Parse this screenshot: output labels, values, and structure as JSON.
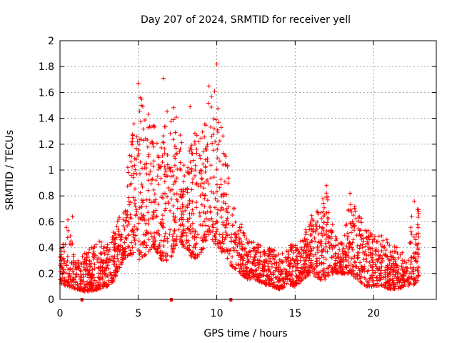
{
  "chart_data": {
    "type": "scatter",
    "title": "Day 207 of 2024, SRMTID for receiver yell",
    "xlabel": "GPS time / hours",
    "ylabel": "SRMTID / TECUs",
    "xlim": [
      0,
      24
    ],
    "ylim": [
      0,
      2
    ],
    "x_ticks": [
      0,
      5,
      10,
      15,
      20
    ],
    "x_tick_labels": [
      "0",
      "5",
      "10",
      "15",
      "20"
    ],
    "y_ticks": [
      0,
      0.2,
      0.4,
      0.6,
      0.8,
      1,
      1.2,
      1.4,
      1.6,
      1.8,
      2
    ],
    "y_tick_labels": [
      "0",
      "0.2",
      "0.4",
      "0.6",
      "0.8",
      "1",
      "1.2",
      "1.4",
      "1.6",
      "1.8",
      "2"
    ],
    "grid": true,
    "series_color": "#ff0000",
    "marker": "plus",
    "data_gap_markers_x": [
      1.4,
      7.1,
      10.9
    ],
    "envelope": {
      "description": "approximate upper/lower bounds of point cloud by hour",
      "hours": [
        0,
        0.5,
        1,
        1.5,
        2,
        2.5,
        3,
        3.5,
        4,
        4.5,
        5,
        5.5,
        6,
        6.5,
        7,
        7.5,
        8,
        8.5,
        9,
        9.5,
        10,
        10.5,
        11,
        11.5,
        12,
        12.5,
        13,
        13.5,
        14,
        14.5,
        15,
        15.5,
        16,
        16.5,
        17,
        17.5,
        18,
        18.5,
        19,
        19.5,
        20,
        20.5,
        21,
        21.5,
        22,
        22.5,
        22.9
      ],
      "low": [
        0.12,
        0.1,
        0.08,
        0.06,
        0.06,
        0.08,
        0.1,
        0.15,
        0.3,
        0.35,
        0.3,
        0.35,
        0.4,
        0.3,
        0.3,
        0.45,
        0.4,
        0.3,
        0.35,
        0.5,
        0.4,
        0.35,
        0.25,
        0.2,
        0.15,
        0.15,
        0.12,
        0.1,
        0.08,
        0.1,
        0.1,
        0.15,
        0.2,
        0.15,
        0.15,
        0.2,
        0.2,
        0.2,
        0.15,
        0.1,
        0.1,
        0.1,
        0.08,
        0.08,
        0.1,
        0.1,
        0.15
      ],
      "high": [
        0.4,
        0.65,
        0.3,
        0.35,
        0.4,
        0.45,
        0.45,
        0.55,
        0.7,
        1.2,
        1.6,
        1.5,
        1.35,
        1.2,
        1.6,
        1.45,
        1.0,
        1.3,
        1.25,
        1.55,
        1.7,
        1.2,
        0.85,
        0.6,
        0.45,
        0.45,
        0.4,
        0.4,
        0.35,
        0.4,
        0.45,
        0.5,
        0.65,
        0.7,
        0.85,
        0.5,
        0.45,
        0.75,
        0.7,
        0.55,
        0.5,
        0.5,
        0.45,
        0.4,
        0.35,
        0.7,
        0.72
      ]
    },
    "notable_points": [
      {
        "x": 0.8,
        "y": 0.64
      },
      {
        "x": 5.0,
        "y": 1.67
      },
      {
        "x": 6.6,
        "y": 1.71
      },
      {
        "x": 8.3,
        "y": 1.49
      },
      {
        "x": 9.5,
        "y": 1.65
      },
      {
        "x": 10.0,
        "y": 1.82
      },
      {
        "x": 17.0,
        "y": 0.88
      },
      {
        "x": 18.5,
        "y": 0.82
      },
      {
        "x": 22.6,
        "y": 0.76
      }
    ]
  }
}
